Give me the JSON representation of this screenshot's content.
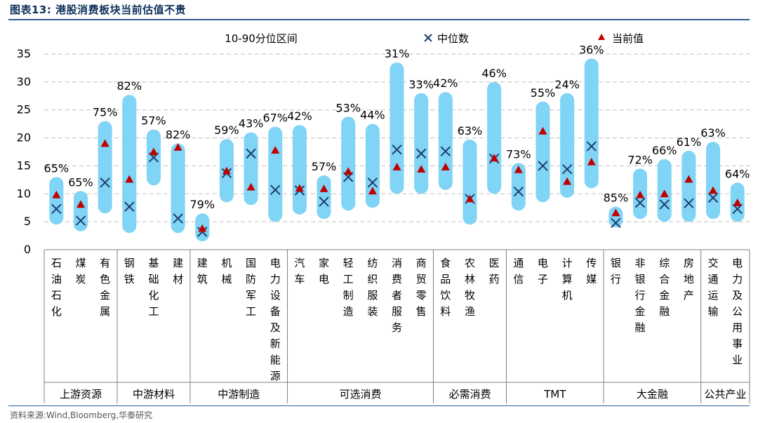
{
  "figure": {
    "title": "图表13:  港股消费板块当前估值不贵",
    "source": "资料来源:Wind,Bloomberg,华泰研究"
  },
  "colors": {
    "band": "#80d4f5",
    "median": "#1f3f6d",
    "current": "#c00000",
    "grid": "#bfbfbf",
    "rule": "#2b5e9b"
  },
  "chart_data": {
    "type": "range",
    "title": "港股消费板块当前估值不贵",
    "ylim": [
      0,
      35
    ],
    "yticks": [
      "0",
      "5",
      "10",
      "15",
      "20",
      "25",
      "30",
      "35"
    ],
    "grid": true,
    "legend": [
      {
        "key": "band",
        "label": "10-90分位区间"
      },
      {
        "key": "median",
        "label": "中位数"
      },
      {
        "key": "current",
        "label": "当前值"
      }
    ],
    "categories": [
      {
        "name": "石油石化",
        "low": 4.5,
        "high": 13,
        "median": 7.3,
        "current": 9.8,
        "pct": "65%"
      },
      {
        "name": "煤炭",
        "low": 3.3,
        "high": 10.5,
        "median": 5.2,
        "current": 8.1,
        "pct": "65%"
      },
      {
        "name": "有色金属",
        "low": 6.5,
        "high": 23,
        "median": 12,
        "current": 19,
        "pct": "75%"
      },
      {
        "name": "钢铁",
        "low": 3,
        "high": 27.7,
        "median": 7.7,
        "current": 12.6,
        "pct": "82%"
      },
      {
        "name": "基础化工",
        "low": 11.5,
        "high": 21.5,
        "median": 16.5,
        "current": 17.5,
        "pct": "57%"
      },
      {
        "name": "建材",
        "low": 3,
        "high": 19,
        "median": 5.6,
        "current": 18.3,
        "pct": "82%"
      },
      {
        "name": "建筑",
        "low": 1.5,
        "high": 6.5,
        "median": 3.2,
        "current": 3.8,
        "pct": "79%"
      },
      {
        "name": "机械",
        "low": 8.5,
        "high": 19.8,
        "median": 13.7,
        "current": 14.1,
        "pct": "59%"
      },
      {
        "name": "国防军工",
        "low": 8,
        "high": 21,
        "median": 17.2,
        "current": 11.2,
        "pct": "43%"
      },
      {
        "name": "电力设备及新能源",
        "low": 5,
        "high": 22,
        "median": 10.7,
        "current": 17.8,
        "pct": "67%"
      },
      {
        "name": "汽车",
        "low": 6.3,
        "high": 22.3,
        "median": 10.6,
        "current": 11,
        "pct": "42%"
      },
      {
        "name": "家电",
        "low": 5.5,
        "high": 13.3,
        "median": 8.6,
        "current": 10.9,
        "pct": "57%"
      },
      {
        "name": "轻工制造",
        "low": 7,
        "high": 23.8,
        "median": 13,
        "current": 14,
        "pct": "53%"
      },
      {
        "name": "纺织服装",
        "low": 7.5,
        "high": 22.5,
        "median": 12,
        "current": 10.5,
        "pct": "44%"
      },
      {
        "name": "消费者服务",
        "low": 10,
        "high": 33.5,
        "median": 17.9,
        "current": 14.8,
        "pct": "31%"
      },
      {
        "name": "商贸零售",
        "low": 10,
        "high": 28,
        "median": 17.2,
        "current": 14.4,
        "pct": "33%"
      },
      {
        "name": "食品饮料",
        "low": 10.7,
        "high": 28.2,
        "median": 17.6,
        "current": 14.8,
        "pct": "42%"
      },
      {
        "name": "农林牧渔",
        "low": 4.5,
        "high": 19.7,
        "median": 9.1,
        "current": 9.1,
        "pct": "63%"
      },
      {
        "name": "医药",
        "low": 10,
        "high": 30,
        "median": 16.3,
        "current": 16.4,
        "pct": "46%"
      },
      {
        "name": "通信",
        "low": 7,
        "high": 15.5,
        "median": 10.4,
        "current": 14.3,
        "pct": "73%"
      },
      {
        "name": "电子",
        "low": 8.5,
        "high": 26.5,
        "median": 15,
        "current": 21.2,
        "pct": "55%"
      },
      {
        "name": "计算机",
        "low": 9.3,
        "high": 28,
        "median": 14.4,
        "current": 12.2,
        "pct": "24%"
      },
      {
        "name": "传媒",
        "low": 11,
        "high": 34.2,
        "median": 18.5,
        "current": 15.7,
        "pct": "36%"
      },
      {
        "name": "银行",
        "low": 4,
        "high": 7.7,
        "median": 4.8,
        "current": 6.6,
        "pct": "85%"
      },
      {
        "name": "非银行金融",
        "low": 5.5,
        "high": 14.5,
        "median": 8.4,
        "current": 9.8,
        "pct": "72%"
      },
      {
        "name": "综合金融",
        "low": 5,
        "high": 16.2,
        "median": 8.1,
        "current": 10,
        "pct": "66%"
      },
      {
        "name": "房地产",
        "low": 5,
        "high": 17.7,
        "median": 8.3,
        "current": 12.6,
        "pct": "61%"
      },
      {
        "name": "交通运输",
        "low": 5.5,
        "high": 19.3,
        "median": 9.3,
        "current": 10.6,
        "pct": "63%"
      },
      {
        "name": "电力及公用事业",
        "low": 5,
        "high": 12,
        "median": 7.3,
        "current": 8.4,
        "pct": "64%"
      }
    ],
    "groups": [
      {
        "name": "上游资源",
        "count": 3
      },
      {
        "name": "中游材料",
        "count": 3
      },
      {
        "name": "中游制造",
        "count": 4
      },
      {
        "name": "可选消费",
        "count": 6
      },
      {
        "name": "必需消费",
        "count": 3
      },
      {
        "name": "TMT",
        "count": 4
      },
      {
        "name": "大金融",
        "count": 4
      },
      {
        "name": "公共产业",
        "count": 2
      }
    ]
  }
}
